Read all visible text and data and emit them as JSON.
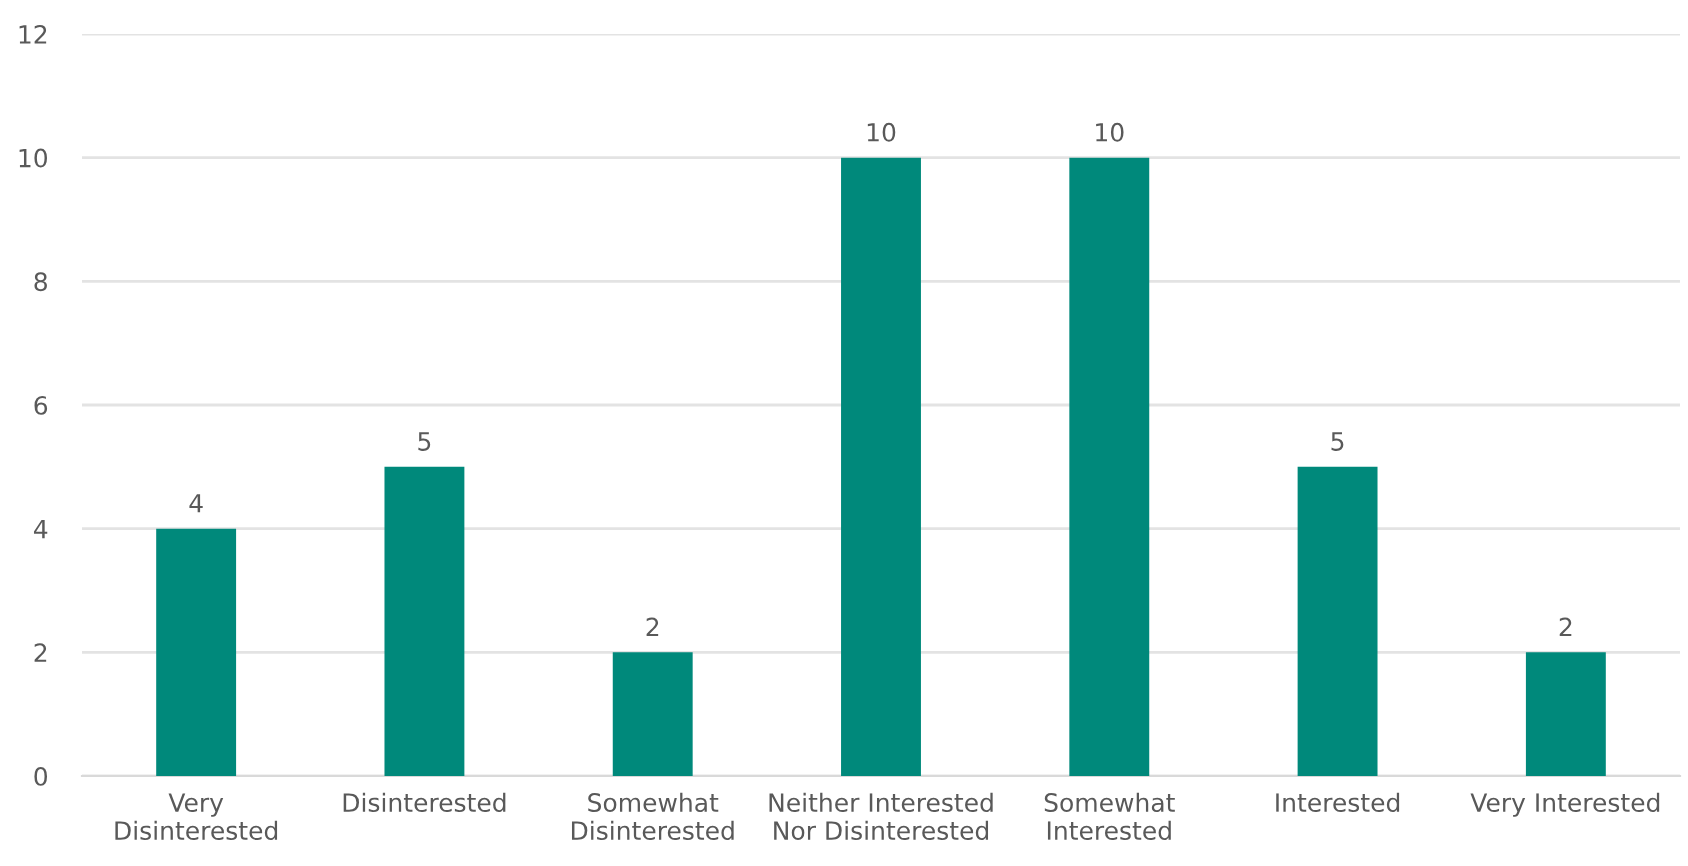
{
  "chart_data": {
    "type": "bar",
    "categories": [
      "Very\nDisinterested",
      "Disinterested",
      "Somewhat\nDisinterested",
      "Neither Interested\nNor Disinterested",
      "Somewhat\nInterested",
      "Interested",
      "Very Interested"
    ],
    "values": [
      4,
      5,
      2,
      10,
      10,
      5,
      2
    ],
    "color": "#00897b",
    "ylim": [
      0,
      12
    ],
    "yticks": [
      0,
      2,
      4,
      6,
      8,
      10,
      12
    ],
    "grid": "y",
    "data_labels": true
  }
}
